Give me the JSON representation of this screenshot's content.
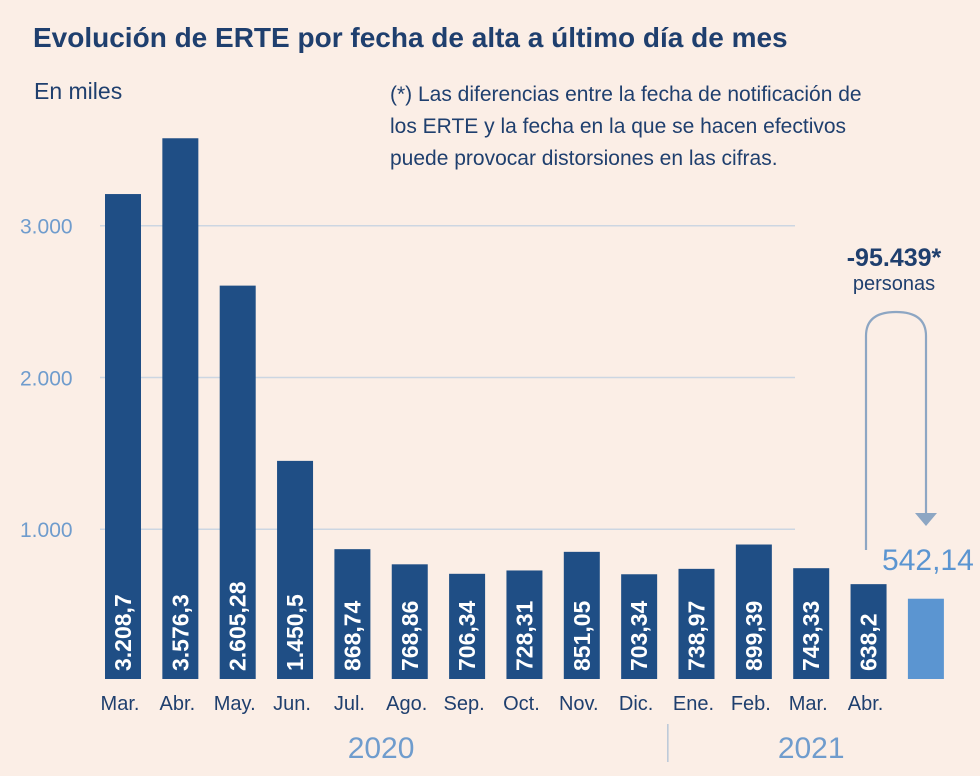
{
  "chart_data": {
    "type": "bar",
    "title": "Evolución de ERTE por fecha de alta a último día de mes",
    "unit_label": "En miles",
    "note_lines": [
      "(*) Las diferencias entre la fecha de notificación de",
      "los ERTE y la fecha en la que se hacen efectivos",
      "puede provocar distorsiones en las cifras."
    ],
    "categories": [
      "Mar.",
      "Abr.",
      "May.",
      "Jun.",
      "Jul.",
      "Ago.",
      "Sep.",
      "Oct.",
      "Nov.",
      "Dic.",
      "Ene.",
      "Feb.",
      "Mar.",
      "Abr.",
      ""
    ],
    "values": [
      3208.7,
      3576.3,
      2605.28,
      1450.5,
      868.74,
      768.86,
      706.34,
      728.31,
      851.05,
      703.34,
      738.97,
      899.39,
      743.33,
      638.2,
      542.14
    ],
    "value_labels": [
      "3.208,7",
      "3.576,3",
      "2.605,28",
      "1.450,5",
      "868,74",
      "768,86",
      "706,34",
      "728,31",
      "851,05",
      "703,34",
      "738,97",
      "899,39",
      "743,33",
      "638,2",
      "542,14"
    ],
    "year_groups": [
      {
        "label": "2020",
        "first_index": 0,
        "last_index": 9
      },
      {
        "label": "2021",
        "first_index": 10,
        "last_index": 14
      }
    ],
    "yticks": [
      1000,
      2000,
      3000
    ],
    "ytick_labels": [
      "1.000",
      "2.000",
      "3.000"
    ],
    "ylim": [
      0,
      3750
    ],
    "grid": true,
    "highlight_index": 14,
    "annotation": {
      "value": "-95.439*",
      "sub": "personas"
    },
    "colors": {
      "background": "#fbeee6",
      "bar": "#1f4e85",
      "highlight_bar": "#5b95d1",
      "grid": "#ccd6e2",
      "text": "#1f3f6e",
      "axis_text": "#6f9ccd"
    }
  }
}
